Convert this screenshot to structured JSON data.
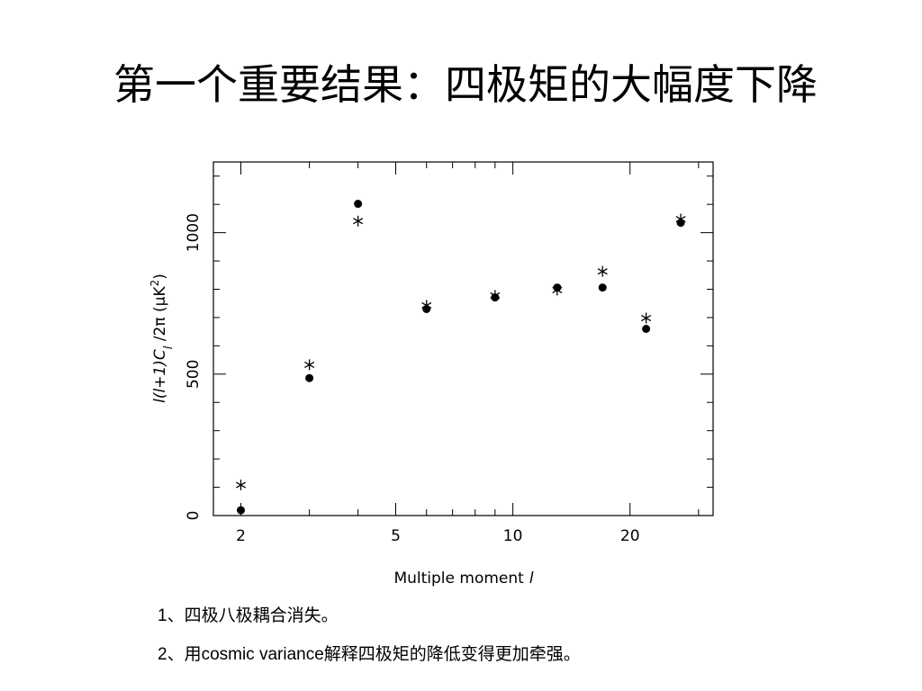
{
  "title": "第一个重要结果：四极矩的大幅度下降",
  "chart_data": {
    "type": "scatter",
    "xlabel_parts": [
      "Multiple moment",
      "l"
    ],
    "ylabel_parts": [
      "l(l+1)C",
      "l",
      " /2π (μK",
      "2",
      ")"
    ],
    "xscale": "log",
    "xlim": [
      1.7,
      32.7
    ],
    "ylim": [
      0,
      1250
    ],
    "xticks": [
      2,
      5,
      10,
      20
    ],
    "yticks": [
      0,
      500,
      1000
    ],
    "xminor_ticks": [
      3,
      4,
      6,
      7,
      8,
      9,
      30
    ],
    "yminor_ticks": [
      100,
      200,
      300,
      400,
      600,
      700,
      800,
      900,
      1100,
      1200
    ],
    "series": [
      {
        "marker": "circle",
        "color": "#000000",
        "x": [
          2,
          3,
          4,
          6,
          9,
          13,
          17,
          22,
          27
        ],
        "values": [
          19,
          486,
          1102,
          730,
          771,
          806,
          806,
          660,
          1035
        ]
      },
      {
        "marker": "star",
        "color": "#000000",
        "x": [
          2,
          3,
          4,
          6,
          9,
          13,
          17,
          22,
          27
        ],
        "values": [
          108,
          533,
          1041,
          743,
          778,
          797,
          863,
          698,
          1048
        ]
      }
    ]
  },
  "notes": [
    "1、四极八极耦合消失。",
    "2、用cosmic variance解释四极矩的降低变得更加牵强。"
  ]
}
